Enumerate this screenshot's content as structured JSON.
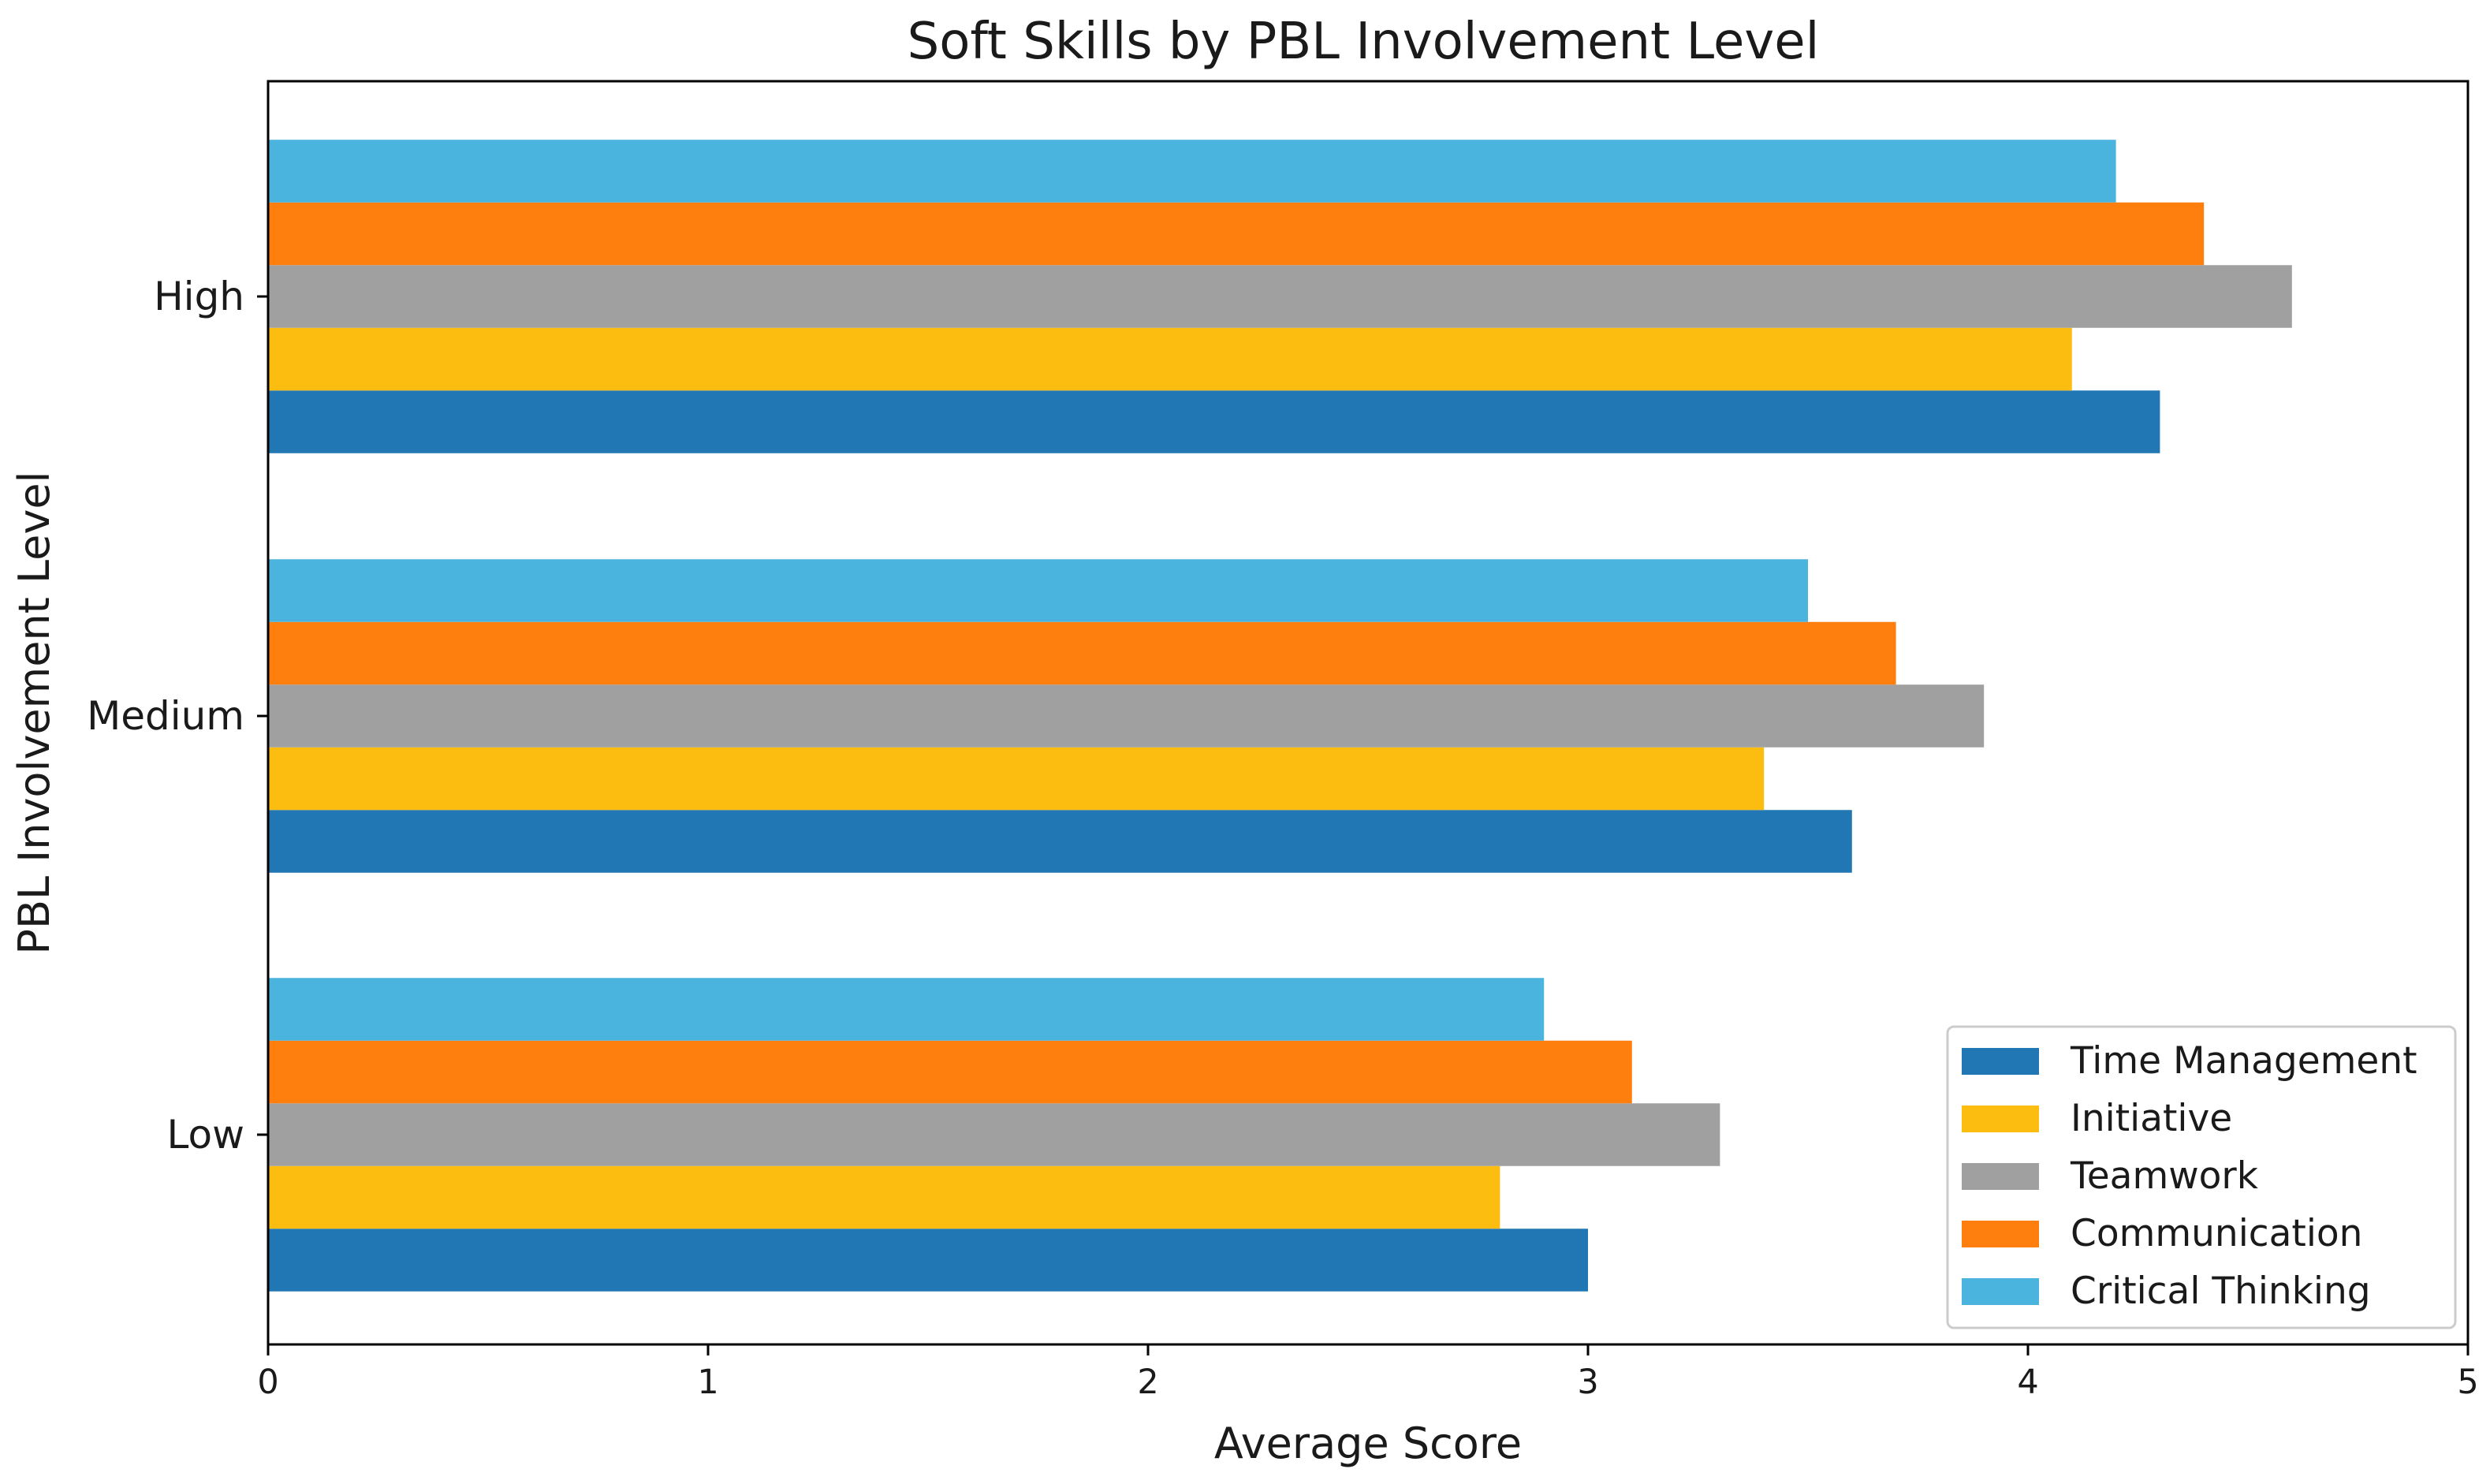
{
  "chart_data": {
    "type": "bar",
    "orientation": "horizontal",
    "title": "Soft Skills by PBL Involvement Level",
    "xlabel": "Average Score",
    "ylabel": "PBL Involvement Level",
    "categories": [
      "Low",
      "Medium",
      "High"
    ],
    "xlim": [
      0,
      5
    ],
    "xticks": [
      "0",
      "1",
      "2",
      "3",
      "4",
      "5"
    ],
    "grid": false,
    "legend_position": "lower-right",
    "series": [
      {
        "name": "Time Management",
        "color": "#2077b4",
        "values": [
          3.0,
          3.6,
          4.3
        ]
      },
      {
        "name": "Initiative",
        "color": "#fdbd10",
        "values": [
          2.8,
          3.4,
          4.1
        ]
      },
      {
        "name": "Teamwork",
        "color": "#a0a0a0",
        "values": [
          3.3,
          3.9,
          4.6
        ]
      },
      {
        "name": "Communication",
        "color": "#fe7f0e",
        "values": [
          3.1,
          3.7,
          4.4
        ]
      },
      {
        "name": "Critical Thinking",
        "color": "#4ab3de",
        "values": [
          2.9,
          3.5,
          4.2
        ]
      }
    ]
  }
}
